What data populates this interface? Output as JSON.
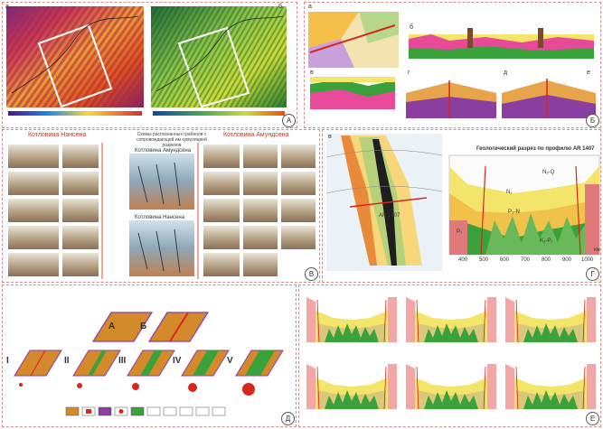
{
  "panels": {
    "a": {
      "circle": "А",
      "sub_a": "а",
      "sub_b": "б"
    },
    "b": {
      "circle": "Б",
      "sub_a": "а",
      "sub_b": "б",
      "sub_v": "в",
      "sub_g": "г",
      "sub_d": "д",
      "sub_e": "е"
    },
    "v": {
      "circle": "В",
      "title_left": "Котловина Нансена",
      "title_mid": "Схемы распознанных грабенов с сопровождающей им кумуляцией разрезов",
      "title_right": "Котловина Амундсена",
      "inset_top": "Котловина Амундсена",
      "inset_bottom": "Котловина Нансена"
    },
    "g": {
      "circle": "Г",
      "sub_v": "в",
      "profile_title": "Геологический разрез по профилю AR 1407",
      "profile_label": "AR 1407",
      "x_ticks": [
        "400",
        "500",
        "600",
        "700",
        "800",
        "900",
        "1000"
      ],
      "x_unit": "км",
      "units": [
        "N₂-Q",
        "N₁",
        "P₃-N",
        "P₂",
        "K₂-P₁"
      ]
    },
    "d": {
      "circle": "Д",
      "label_a": "А",
      "label_b": "Б",
      "stages": [
        "I",
        "II",
        "III",
        "IV",
        "V"
      ]
    },
    "e": {
      "circle": "Е"
    }
  },
  "colors": {
    "orange": "#d4892a",
    "red": "#d9261c",
    "purple": "#8a3fa0",
    "green": "#3aa23a",
    "yellow": "#f3e46a",
    "pink": "#f2a6a6"
  }
}
